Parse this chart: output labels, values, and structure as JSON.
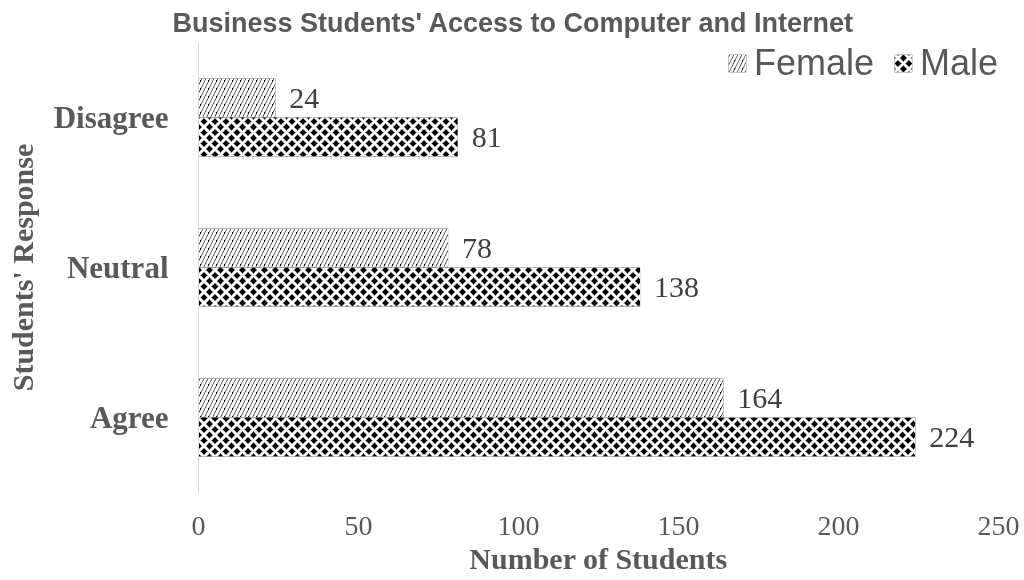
{
  "chart_data": {
    "type": "bar",
    "orientation": "horizontal",
    "title": "Business Students' Access to Computer and Internet",
    "xlabel": "Number of Students",
    "ylabel": "Students' Response",
    "categories": [
      "Disagree",
      "Neutral",
      "Agree"
    ],
    "series": [
      {
        "name": "Female",
        "color": "#000000",
        "values": [
          24,
          78,
          164
        ]
      },
      {
        "name": "Male",
        "color": "#000000",
        "values": [
          81,
          138,
          224
        ]
      }
    ],
    "xlim": [
      0,
      250
    ],
    "xticks": [
      0,
      50,
      100,
      150,
      200,
      250
    ],
    "data_labels": true,
    "legend": "top right"
  }
}
